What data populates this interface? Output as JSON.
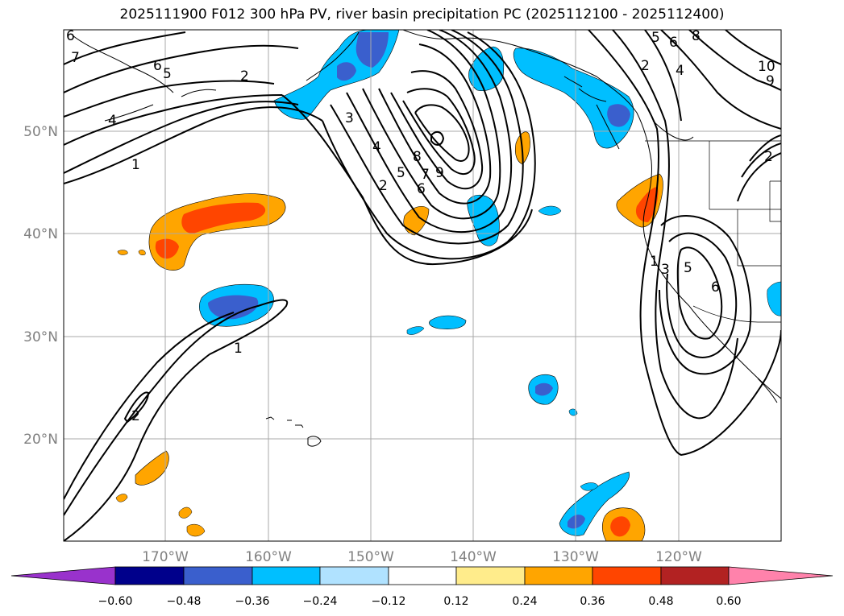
{
  "title": "2025111900 F012 300 hPa PV, river basin precipitation PC (2025112100 - 2025112400)",
  "colors": {
    "neg_060": "#9932cc",
    "neg_048": "#00008b",
    "neg_036": "#3a5fcd",
    "neg_024": "#00bfff",
    "neg_012": "#b0e2ff",
    "neutral": "#ffffff",
    "pos_012": "#ffec8b",
    "pos_024": "#ffa500",
    "pos_036": "#ff4500",
    "pos_048": "#b22222",
    "pos_060": "#ff82ab",
    "grid": "#a9a9a9",
    "contour": "#000000"
  },
  "map": {
    "projection": "PlateCarree",
    "lon_range": [
      -180,
      -110
    ],
    "lat_range": [
      10,
      60
    ],
    "gridlines": true,
    "lat_labels": [
      "20°N",
      "30°N",
      "40°N",
      "50°N"
    ],
    "lon_labels": [
      "170°W",
      "160°W",
      "150°W",
      "140°W",
      "130°W",
      "120°W"
    ],
    "pv_contour_labels": [
      "6",
      "7",
      "6",
      "5",
      "2",
      "4",
      "1",
      "3",
      "4",
      "8",
      "7",
      "6",
      "5",
      "2",
      "9",
      "5",
      "6",
      "8",
      "2",
      "4",
      "10",
      "9",
      "2",
      "1",
      "3",
      "5",
      "6",
      "1",
      "2"
    ]
  },
  "colorbar": {
    "ticks": [
      "−0.60",
      "−0.48",
      "−0.36",
      "−0.24",
      "−0.12",
      "0.12",
      "0.24",
      "0.36",
      "0.48",
      "0.60"
    ],
    "extend": "both"
  }
}
